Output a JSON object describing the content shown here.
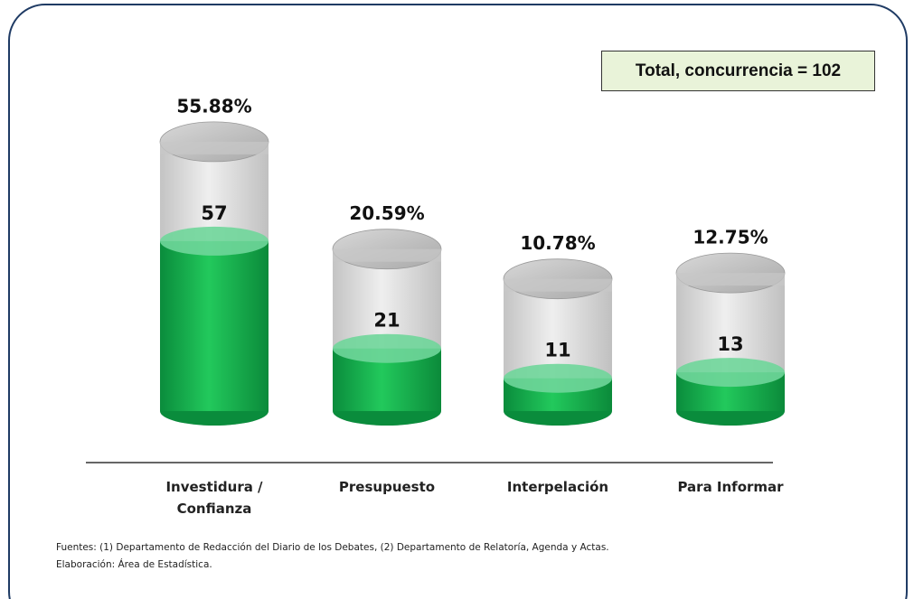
{
  "chart_data": {
    "type": "bar",
    "categories": [
      "Investidura / Confianza",
      "Presupuesto",
      "Interpelación",
      "Para Informar"
    ],
    "values": [
      57,
      21,
      11,
      13
    ],
    "color": "#1db954",
    "shares": {
      "values": [
        55.88,
        20.59,
        10.78,
        12.75
      ],
      "value_labels": [
        "55.88%",
        "20.59%",
        "10.78%",
        "12.75%"
      ]
    },
    "annotation": "Total, concurrencia = 102",
    "notes": [
      "Fuentes: (1) Departamento de Redacción del Diario de los Debates, (2) Departamento de Relatoría, Agenda y Actas.",
      "Elaboración: Área de Estadística."
    ]
  }
}
